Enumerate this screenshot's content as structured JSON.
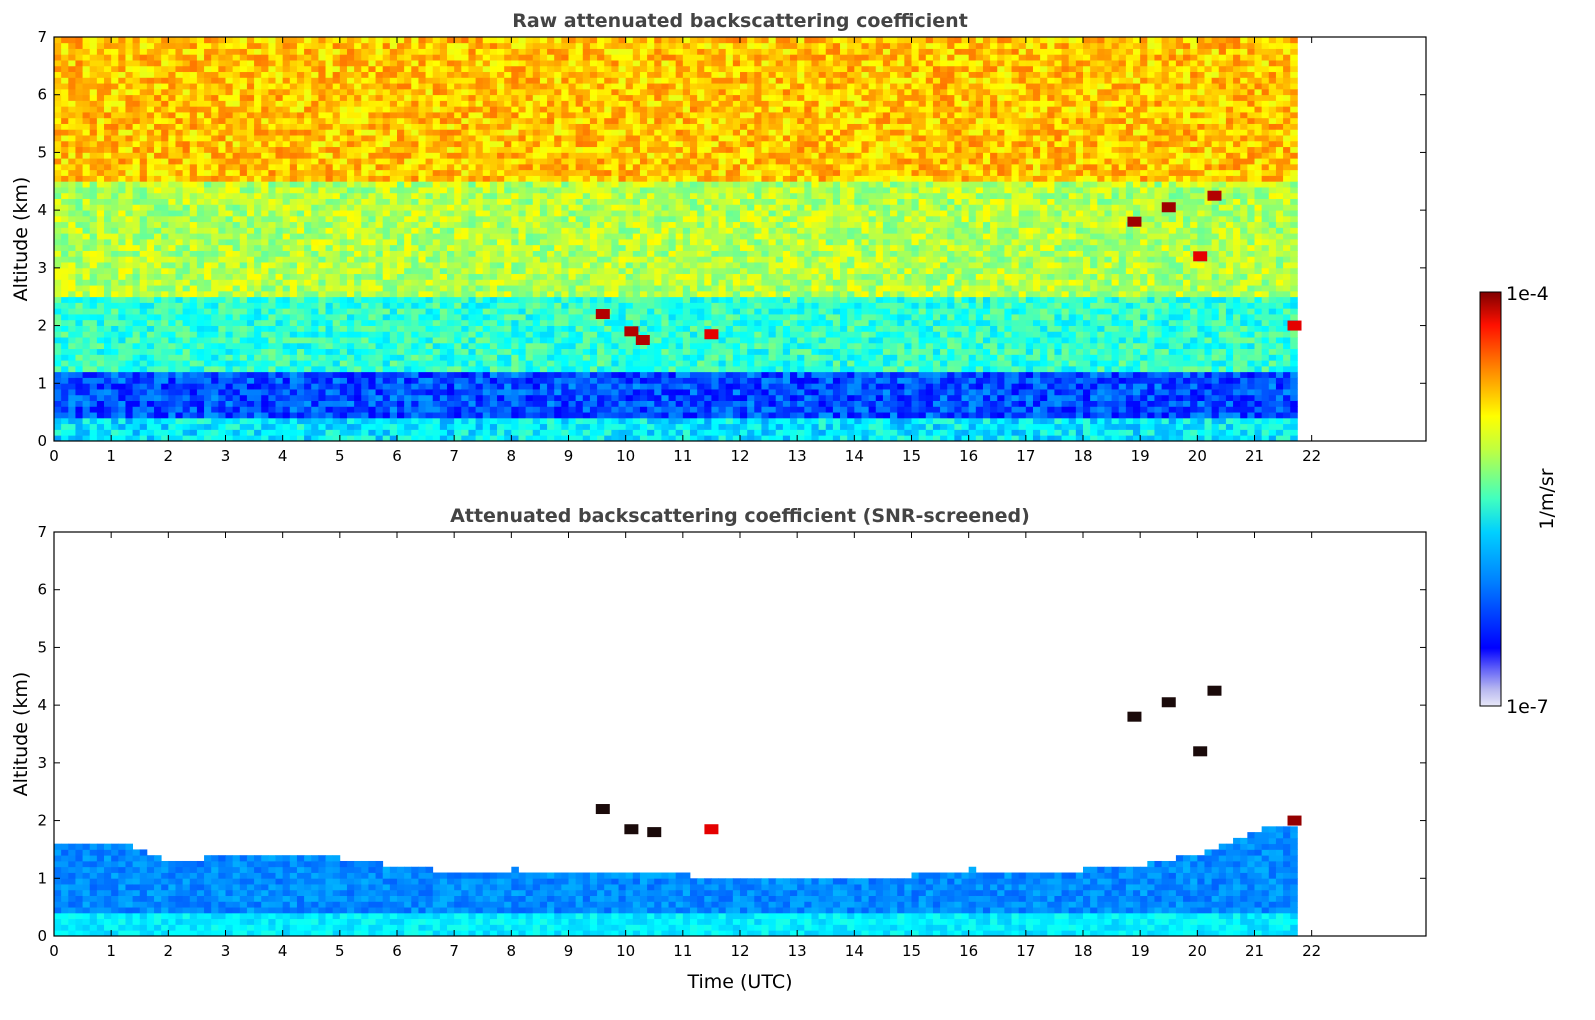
{
  "chart_data": [
    {
      "type": "heatmap",
      "title": "Raw attenuated backscattering coefficient",
      "xlabel": "",
      "ylabel": "Altitude (km)",
      "xlim": [
        0,
        24
      ],
      "ylim": [
        0,
        7
      ],
      "x_ticks": [
        0,
        1,
        2,
        3,
        4,
        5,
        6,
        7,
        8,
        9,
        10,
        11,
        12,
        13,
        14,
        15,
        16,
        17,
        18,
        19,
        20,
        21,
        22
      ],
      "y_ticks": [
        0,
        1,
        2,
        3,
        4,
        5,
        6,
        7
      ],
      "data_x_range": [
        0,
        21.75
      ],
      "layers": [
        {
          "y_from": 0.0,
          "y_to": 0.4,
          "level": 0.36
        },
        {
          "y_from": 0.4,
          "y_to": 1.2,
          "level": 0.2
        },
        {
          "y_from": 1.2,
          "y_to": 2.5,
          "level": 0.42
        },
        {
          "y_from": 2.5,
          "y_to": 4.5,
          "level": 0.55
        },
        {
          "y_from": 4.5,
          "y_to": 7.0,
          "level": 0.68
        }
      ],
      "features": [
        {
          "x": 9.6,
          "y": 2.2,
          "level": 0.95
        },
        {
          "x": 10.1,
          "y": 1.9,
          "level": 0.95
        },
        {
          "x": 10.3,
          "y": 1.75,
          "level": 0.95
        },
        {
          "x": 11.5,
          "y": 1.85,
          "level": 0.9
        },
        {
          "x": 18.9,
          "y": 3.8,
          "level": 0.97
        },
        {
          "x": 19.5,
          "y": 4.05,
          "level": 0.97
        },
        {
          "x": 20.3,
          "y": 4.25,
          "level": 0.95
        },
        {
          "x": 20.05,
          "y": 3.2,
          "level": 0.9
        },
        {
          "x": 21.7,
          "y": 2.0,
          "level": 0.9
        }
      ]
    },
    {
      "type": "heatmap",
      "title": "Attenuated backscattering coefficient (SNR-screened)",
      "xlabel": "Time (UTC)",
      "ylabel": "Altitude (km)",
      "xlim": [
        0,
        24
      ],
      "ylim": [
        0,
        7
      ],
      "x_ticks": [
        0,
        1,
        2,
        3,
        4,
        5,
        6,
        7,
        8,
        9,
        10,
        11,
        12,
        13,
        14,
        15,
        16,
        17,
        18,
        19,
        20,
        21,
        22
      ],
      "y_ticks": [
        0,
        1,
        2,
        3,
        4,
        5,
        6,
        7
      ],
      "data_x_range": [
        0,
        21.75
      ],
      "boundary_layer_top_km": [
        [
          0,
          1.6
        ],
        [
          1,
          1.6
        ],
        [
          2,
          1.25
        ],
        [
          3,
          1.35
        ],
        [
          4,
          1.4
        ],
        [
          5,
          1.3
        ],
        [
          6,
          1.15
        ],
        [
          7,
          1.05
        ],
        [
          8,
          1.1
        ],
        [
          9,
          1.05
        ],
        [
          10,
          1.0
        ],
        [
          11,
          1.0
        ],
        [
          12,
          0.98
        ],
        [
          13,
          0.98
        ],
        [
          14,
          0.98
        ],
        [
          15,
          1.0
        ],
        [
          16,
          1.1
        ],
        [
          17,
          1.05
        ],
        [
          18,
          1.1
        ],
        [
          19,
          1.2
        ],
        [
          20,
          1.4
        ],
        [
          21,
          1.8
        ],
        [
          21.75,
          1.9
        ]
      ],
      "features": [
        {
          "x": 9.6,
          "y": 2.2,
          "level": 1.0
        },
        {
          "x": 10.1,
          "y": 1.85,
          "level": 1.0
        },
        {
          "x": 10.5,
          "y": 1.8,
          "level": 1.0
        },
        {
          "x": 11.5,
          "y": 1.85,
          "level": 0.9
        },
        {
          "x": 18.9,
          "y": 3.8,
          "level": 1.0
        },
        {
          "x": 19.5,
          "y": 4.05,
          "level": 1.0
        },
        {
          "x": 20.3,
          "y": 4.25,
          "level": 1.0
        },
        {
          "x": 20.05,
          "y": 3.2,
          "level": 1.0
        },
        {
          "x": 21.7,
          "y": 2.0,
          "level": 0.98
        }
      ]
    }
  ],
  "colorbar": {
    "label": "1/m/sr",
    "max_label": "1e-4",
    "min_label": "1e-7",
    "colormap": "jet"
  }
}
